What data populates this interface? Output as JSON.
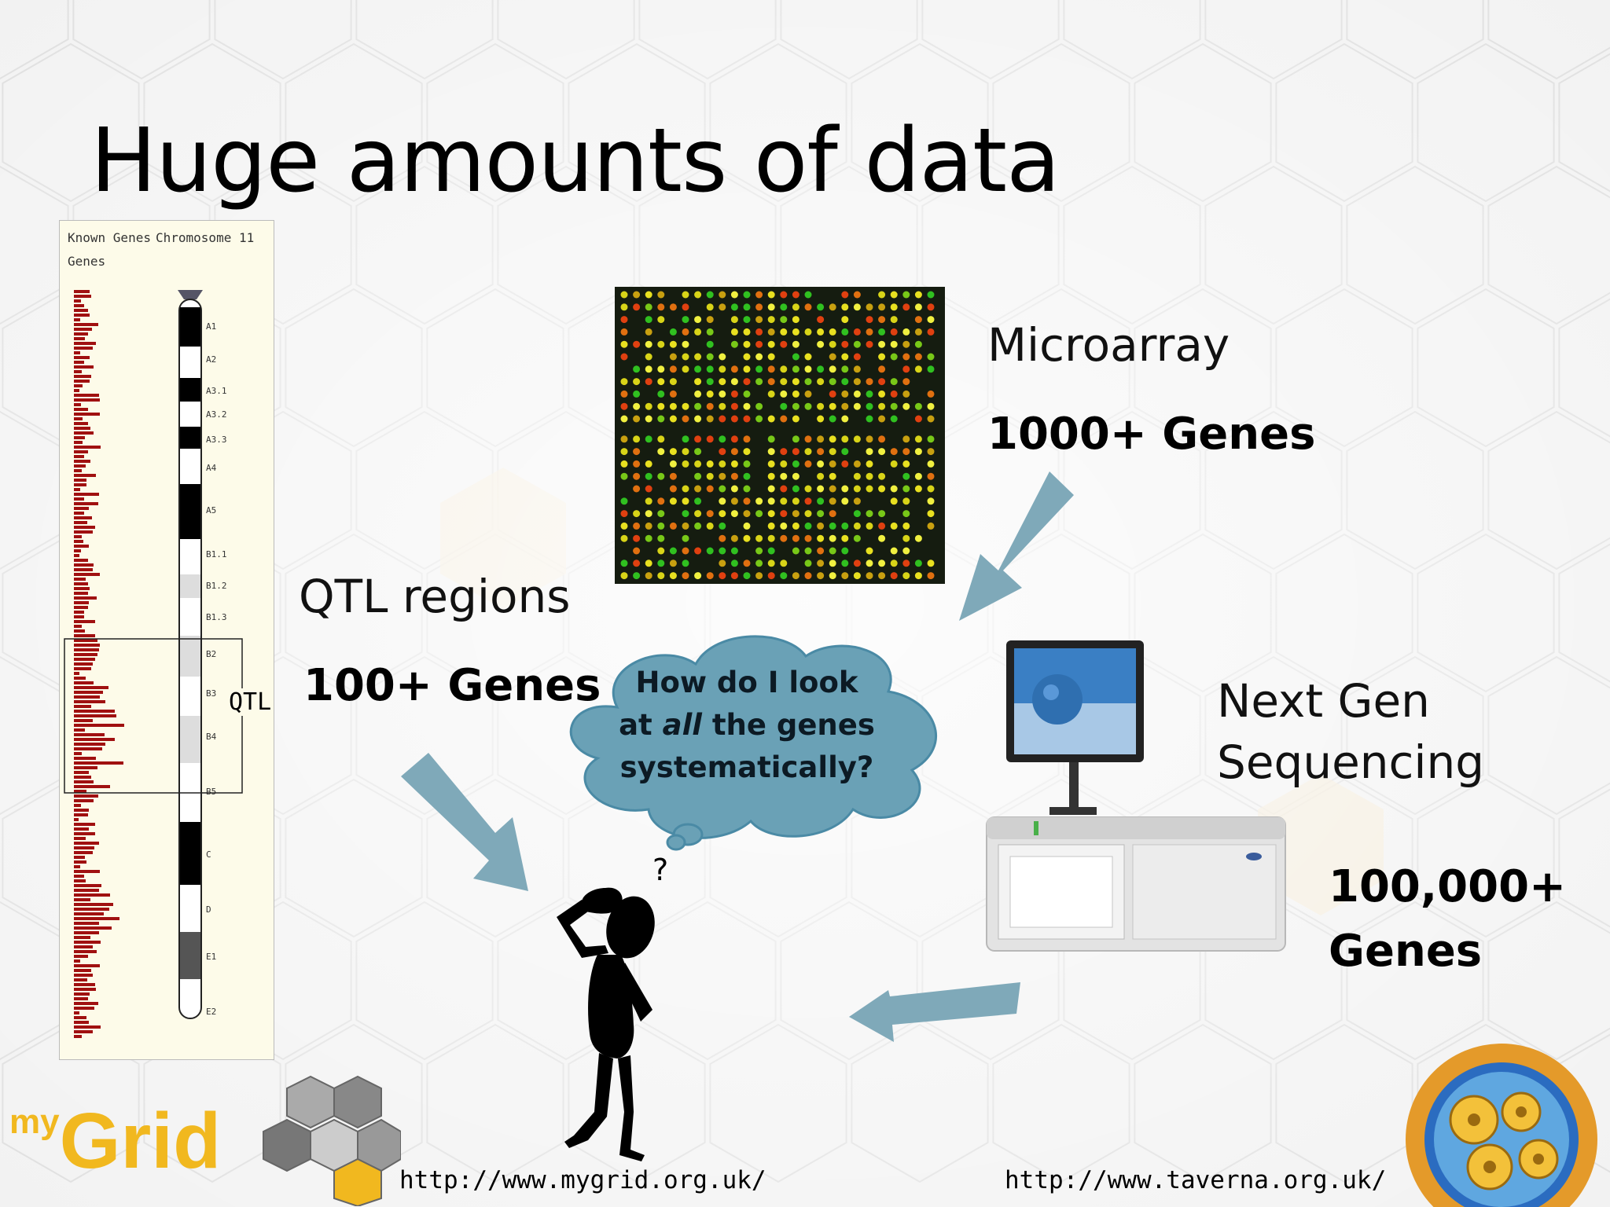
{
  "slide": {
    "title": "Huge amounts of data",
    "chromosome": {
      "header_known_genes": "Known Genes",
      "header_genes": "Genes",
      "header_chromosome": "Chromosome 11",
      "qtl_marker": "QTL",
      "bands": [
        "A1",
        "A2",
        "A3.1",
        "A3.2",
        "A3.3",
        "A4",
        "A5",
        "B1.1",
        "B1.2",
        "B1.3",
        "B2",
        "B3",
        "B4",
        "B5",
        "C",
        "D",
        "E1",
        "E2"
      ]
    },
    "qtl": {
      "label": "QTL regions",
      "count": "100+ Genes"
    },
    "microarray": {
      "label": "Microarray",
      "count": "1000+ Genes"
    },
    "ngs": {
      "label_line1": "Next Gen",
      "label_line2": "Sequencing",
      "count_line1": "100,000+",
      "count_line2": "Genes"
    },
    "thought_bubble": {
      "line1": "How do I look",
      "line2_pre": "at ",
      "line2_em": "all",
      "line2_post": " the genes",
      "line3": "systematically?"
    },
    "question_mark": "?",
    "footer": {
      "logo_my": "my",
      "logo_grid": "Grid",
      "url_left": "http://www.mygrid.org.uk/",
      "url_right": "http://www.taverna.org.uk/"
    },
    "colors": {
      "arrow": "#7fa9b9",
      "bubble_fill": "#6aa1b6",
      "logo_yellow": "#f1b81f",
      "gene_red": "#a01010"
    }
  }
}
